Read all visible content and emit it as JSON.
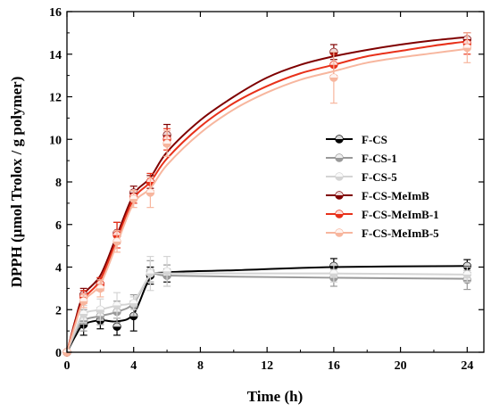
{
  "chart_data": {
    "type": "scatter",
    "title": "",
    "xlabel": "Time (h)",
    "ylabel": "DPPH (μmol Trolox / g polymer)",
    "xlim": [
      0,
      25
    ],
    "ylim": [
      0,
      16
    ],
    "xticks": [
      "0",
      "4",
      "8",
      "12",
      "16",
      "20",
      "24"
    ],
    "yticks": [
      "0",
      "2",
      "4",
      "6",
      "8",
      "10",
      "12",
      "14",
      "16"
    ],
    "grid": false,
    "legend_position": "right",
    "series": [
      {
        "name": "F-CS",
        "color": "#000000",
        "points": [
          [
            0,
            0,
            0
          ],
          [
            1,
            1.3,
            0.5
          ],
          [
            2,
            1.5,
            0.4
          ],
          [
            3,
            1.2,
            0.4
          ],
          [
            4,
            1.7,
            0.7
          ],
          [
            5,
            3.6,
            0.4
          ],
          [
            6,
            3.6,
            0.3
          ],
          [
            16,
            4.05,
            0.35
          ],
          [
            24,
            4.05,
            0.3
          ]
        ],
        "fit": [
          [
            0,
            0
          ],
          [
            0.5,
            0.75
          ],
          [
            1,
            1.3
          ],
          [
            2,
            1.5
          ],
          [
            3,
            1.45
          ],
          [
            4,
            1.8
          ],
          [
            5,
            3.5
          ],
          [
            6,
            3.75
          ],
          [
            10,
            3.85
          ],
          [
            16,
            4.0
          ],
          [
            24,
            4.05
          ]
        ]
      },
      {
        "name": "F-CS-1",
        "color": "#999999",
        "points": [
          [
            0,
            0,
            0
          ],
          [
            1,
            1.5,
            0.5
          ],
          [
            2,
            1.7,
            0.4
          ],
          [
            3,
            1.9,
            0.5
          ],
          [
            4,
            2.2,
            0.5
          ],
          [
            5,
            3.8,
            0.5
          ],
          [
            6,
            3.6,
            0.5
          ],
          [
            16,
            3.5,
            0.4
          ],
          [
            24,
            3.4,
            0.45
          ]
        ],
        "fit": [
          [
            0,
            0
          ],
          [
            0.5,
            0.9
          ],
          [
            1,
            1.5
          ],
          [
            2,
            1.7
          ],
          [
            3,
            1.9
          ],
          [
            4,
            2.3
          ],
          [
            5,
            3.6
          ],
          [
            6,
            3.6
          ],
          [
            10,
            3.55
          ],
          [
            16,
            3.5
          ],
          [
            24,
            3.45
          ]
        ]
      },
      {
        "name": "F-CS-5",
        "color": "#d4d4d4",
        "points": [
          [
            0,
            0,
            0
          ],
          [
            1,
            1.8,
            0.4
          ],
          [
            2,
            2.0,
            0.5
          ],
          [
            3,
            2.2,
            0.6
          ],
          [
            4,
            2.3,
            0.3
          ],
          [
            5,
            3.7,
            0.8
          ],
          [
            6,
            3.8,
            0.7
          ],
          [
            16,
            3.7,
            0.4
          ],
          [
            24,
            3.65,
            0.35
          ]
        ],
        "fit": [
          [
            0,
            0
          ],
          [
            0.5,
            1.0
          ],
          [
            1,
            1.8
          ],
          [
            2,
            2.0
          ],
          [
            3,
            2.2
          ],
          [
            4,
            2.4
          ],
          [
            5,
            3.6
          ],
          [
            6,
            3.7
          ],
          [
            10,
            3.7
          ],
          [
            16,
            3.7
          ],
          [
            24,
            3.65
          ]
        ]
      },
      {
        "name": "F-CS-MeImB",
        "color": "#7f0000",
        "points": [
          [
            0,
            0,
            0
          ],
          [
            1,
            2.7,
            0.3
          ],
          [
            2,
            3.2,
            0.3
          ],
          [
            3,
            5.6,
            0.5
          ],
          [
            4,
            7.5,
            0.3
          ],
          [
            5,
            8.0,
            0.3
          ],
          [
            6,
            10.2,
            0.5
          ],
          [
            16,
            14.1,
            0.35
          ],
          [
            24,
            14.7,
            0.3
          ]
        ],
        "fit": [
          [
            0,
            0
          ],
          [
            0.5,
            1.5
          ],
          [
            1,
            2.7
          ],
          [
            2,
            3.6
          ],
          [
            3,
            5.5
          ],
          [
            4,
            7.4
          ],
          [
            5,
            8.2
          ],
          [
            6,
            9.4
          ],
          [
            8,
            10.9
          ],
          [
            10,
            12.0
          ],
          [
            12,
            12.9
          ],
          [
            14,
            13.5
          ],
          [
            16,
            13.9
          ],
          [
            18,
            14.2
          ],
          [
            20,
            14.45
          ],
          [
            22,
            14.65
          ],
          [
            24,
            14.8
          ]
        ]
      },
      {
        "name": "F-CS-MeImB-1",
        "color": "#e8311a",
        "points": [
          [
            0,
            0,
            0
          ],
          [
            1,
            2.6,
            0.3
          ],
          [
            2,
            3.2,
            0.3
          ],
          [
            3,
            5.5,
            0.6
          ],
          [
            4,
            7.3,
            0.3
          ],
          [
            5,
            8.0,
            0.4
          ],
          [
            6,
            10.0,
            0.5
          ],
          [
            16,
            13.5,
            0.5
          ],
          [
            24,
            14.5,
            0.5
          ]
        ],
        "fit": [
          [
            0,
            0
          ],
          [
            0.5,
            1.4
          ],
          [
            1,
            2.5
          ],
          [
            2,
            3.4
          ],
          [
            3,
            5.3
          ],
          [
            4,
            7.2
          ],
          [
            5,
            8.0
          ],
          [
            6,
            9.1
          ],
          [
            8,
            10.6
          ],
          [
            10,
            11.7
          ],
          [
            12,
            12.5
          ],
          [
            14,
            13.1
          ],
          [
            16,
            13.5
          ],
          [
            18,
            13.9
          ],
          [
            20,
            14.15
          ],
          [
            22,
            14.4
          ],
          [
            24,
            14.6
          ]
        ]
      },
      {
        "name": "F-CS-MeImB-5",
        "color": "#f7b69e",
        "points": [
          [
            0,
            0,
            0
          ],
          [
            1,
            2.4,
            0.3
          ],
          [
            2,
            3.0,
            0.4
          ],
          [
            3,
            5.2,
            0.5
          ],
          [
            4,
            7.2,
            0.4
          ],
          [
            5,
            7.5,
            0.7
          ],
          [
            6,
            9.8,
            0.6
          ],
          [
            16,
            12.9,
            1.2
          ],
          [
            24,
            14.3,
            0.7
          ]
        ],
        "fit": [
          [
            0,
            0
          ],
          [
            0.5,
            1.3
          ],
          [
            1,
            2.4
          ],
          [
            2,
            3.2
          ],
          [
            3,
            5.1
          ],
          [
            4,
            7.0
          ],
          [
            5,
            7.7
          ],
          [
            6,
            8.8
          ],
          [
            8,
            10.3
          ],
          [
            10,
            11.4
          ],
          [
            12,
            12.2
          ],
          [
            14,
            12.8
          ],
          [
            16,
            13.2
          ],
          [
            18,
            13.6
          ],
          [
            20,
            13.85
          ],
          [
            22,
            14.05
          ],
          [
            24,
            14.25
          ]
        ]
      }
    ]
  }
}
